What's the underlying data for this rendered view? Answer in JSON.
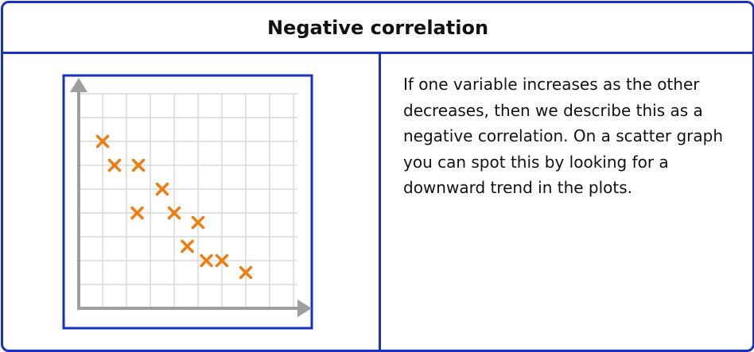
{
  "title": "Negative correlation",
  "description": "If one variable increases as the other decreases, then we describe this as a negative correlation. On a scatter graph you can spot this by looking for a downward trend in the plots.",
  "colors": {
    "border": "#1a2fc4",
    "axis": "#9e9e9e",
    "grid": "#d9d9d9",
    "marker": "#f07d10"
  },
  "chart_data": {
    "type": "scatter",
    "title": "",
    "xlabel": "",
    "ylabel": "",
    "xlim": [
      0,
      9
    ],
    "ylim": [
      0,
      9
    ],
    "grid": true,
    "marker": "x",
    "points": [
      {
        "x": 1.0,
        "y": 7.0
      },
      {
        "x": 1.5,
        "y": 6.0
      },
      {
        "x": 2.5,
        "y": 6.0
      },
      {
        "x": 2.45,
        "y": 4.0
      },
      {
        "x": 3.5,
        "y": 5.0
      },
      {
        "x": 4.0,
        "y": 4.0
      },
      {
        "x": 5.0,
        "y": 3.6
      },
      {
        "x": 4.55,
        "y": 2.6
      },
      {
        "x": 5.35,
        "y": 2.0
      },
      {
        "x": 6.0,
        "y": 2.0
      },
      {
        "x": 7.0,
        "y": 1.5
      }
    ]
  }
}
